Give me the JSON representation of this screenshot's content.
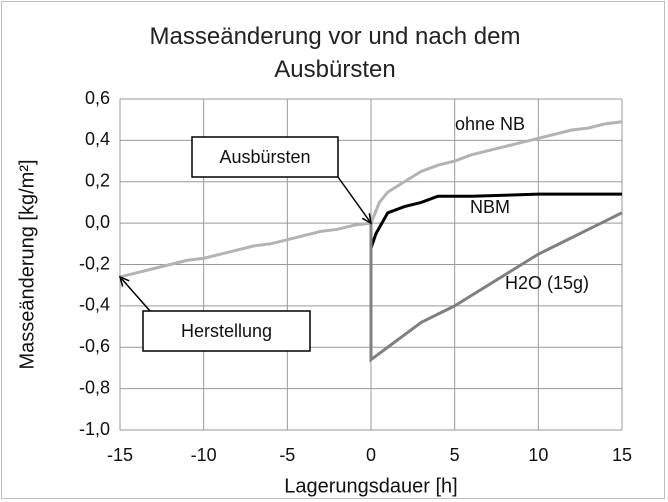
{
  "chart_data": {
    "type": "line",
    "title": "Masseänderung vor und nach dem Ausbürsten",
    "x_label": "Lagerungsdauer [h]",
    "y_label": "Masseänderung [kg/m²]",
    "xlim": [
      -15,
      15
    ],
    "xticks": [
      -15,
      -10,
      -5,
      0,
      5,
      10,
      15
    ],
    "ylim": [
      -1.0,
      0.6
    ],
    "yticks": [
      {
        "value": -1.0,
        "label": "-1,0"
      },
      {
        "value": -0.8,
        "label": "-0,8"
      },
      {
        "value": -0.6,
        "label": "-0,6"
      },
      {
        "value": -0.4,
        "label": "-0,4"
      },
      {
        "value": -0.2,
        "label": "-0,2"
      },
      {
        "value": 0,
        "label": "0,0"
      },
      {
        "value": 0.2,
        "label": "0,2"
      },
      {
        "value": 0.4,
        "label": "0,4"
      },
      {
        "value": 0.6,
        "label": "0,6"
      }
    ],
    "grid": true,
    "series": [
      {
        "name": "ohne NB",
        "color": "#b3b3b3",
        "x": [
          -15,
          -14,
          -13,
          -12,
          -11,
          -10,
          -9,
          -8,
          -7,
          -6,
          -5,
          -4,
          -3,
          -2,
          -1,
          0,
          0.5,
          1,
          2,
          3,
          4,
          5,
          6,
          7,
          8,
          9,
          10,
          11,
          12,
          13,
          14,
          15
        ],
        "values": [
          -0.26,
          -0.24,
          -0.22,
          -0.2,
          -0.18,
          -0.17,
          -0.15,
          -0.13,
          -0.11,
          -0.1,
          -0.08,
          -0.06,
          -0.04,
          -0.03,
          -0.01,
          0,
          0.1,
          0.15,
          0.2,
          0.25,
          0.28,
          0.3,
          0.33,
          0.35,
          0.37,
          0.39,
          0.41,
          0.43,
          0.45,
          0.46,
          0.48,
          0.49
        ]
      },
      {
        "name": "NBM",
        "color": "#000000",
        "x": [
          0,
          0.3,
          1,
          2,
          3,
          4,
          6,
          8,
          10,
          12,
          15
        ],
        "values": [
          -0.12,
          -0.05,
          0.05,
          0.08,
          0.1,
          0.13,
          0.13,
          0.135,
          0.14,
          0.14,
          0.14
        ]
      },
      {
        "name": "H2O (15g)",
        "color": "#808080",
        "x": [
          0,
          0,
          0.5,
          1,
          2,
          3,
          4,
          5,
          6,
          7,
          8,
          9,
          10,
          11,
          12,
          13,
          14,
          15
        ],
        "values": [
          0,
          -0.66,
          -0.63,
          -0.6,
          -0.54,
          -0.48,
          -0.44,
          -0.4,
          -0.35,
          -0.3,
          -0.25,
          -0.2,
          -0.15,
          -0.11,
          -0.07,
          -0.03,
          0.01,
          0.05
        ]
      }
    ],
    "annotations": [
      {
        "text": "Ausbürsten",
        "x": 0,
        "y": 0
      },
      {
        "text": "Herstellung",
        "x": -15,
        "y": -0.26
      }
    ]
  }
}
